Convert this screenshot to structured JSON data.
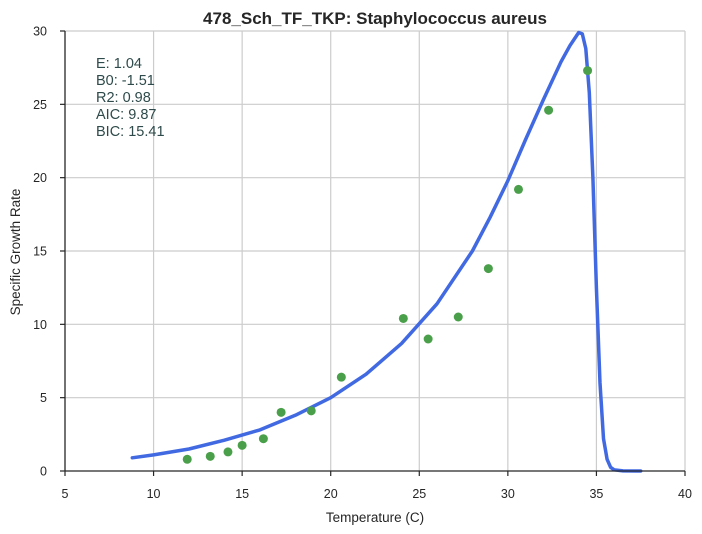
{
  "chart_data": {
    "type": "scatter",
    "title": "478_Sch_TF_TKP: Staphylococcus aureus",
    "xlabel": "Temperature (C)",
    "ylabel": "Specific Growth Rate",
    "xlim": [
      5,
      40
    ],
    "ylim": [
      0,
      30
    ],
    "xticks": [
      5,
      10,
      15,
      20,
      25,
      30,
      35,
      40
    ],
    "yticks": [
      0,
      5,
      10,
      15,
      20,
      25,
      30
    ],
    "grid": true,
    "colors": {
      "points": "#4aa04a",
      "fit": "#4169e1",
      "grid": "#cccccc",
      "axis": "#262626",
      "annotation": "#2e4a4a"
    },
    "annotations": [
      "E:  1.04",
      "B0:  -1.51",
      "R2:  0.98",
      "AIC: 9.87",
      "BIC: 15.41"
    ],
    "series": [
      {
        "kind": "points",
        "x": [
          11.9,
          13.2,
          14.2,
          15.0,
          16.2,
          17.2,
          18.9,
          20.6,
          24.1,
          25.5,
          27.2,
          28.9,
          30.6,
          32.3,
          34.5
        ],
        "y": [
          0.8,
          1.0,
          1.3,
          1.75,
          2.2,
          4.0,
          4.1,
          6.4,
          10.4,
          9.0,
          10.5,
          13.8,
          19.2,
          24.6,
          27.3
        ]
      },
      {
        "kind": "line",
        "x": [
          8.8,
          10,
          12,
          14,
          16,
          18,
          20,
          22,
          24,
          26,
          28,
          29,
          30,
          31,
          32,
          33,
          33.5,
          34.0,
          34.2,
          34.4,
          34.6,
          34.8,
          35.0,
          35.2,
          35.4,
          35.6,
          35.8,
          36.0,
          36.5,
          37.5
        ],
        "y": [
          0.9,
          1.1,
          1.5,
          2.1,
          2.8,
          3.8,
          5.0,
          6.6,
          8.7,
          11.4,
          15.0,
          17.3,
          19.8,
          22.6,
          25.3,
          27.9,
          29.0,
          29.9,
          29.8,
          28.8,
          25.8,
          20.0,
          12.5,
          6.0,
          2.2,
          0.8,
          0.25,
          0.08,
          0.01,
          0.0
        ]
      }
    ]
  }
}
